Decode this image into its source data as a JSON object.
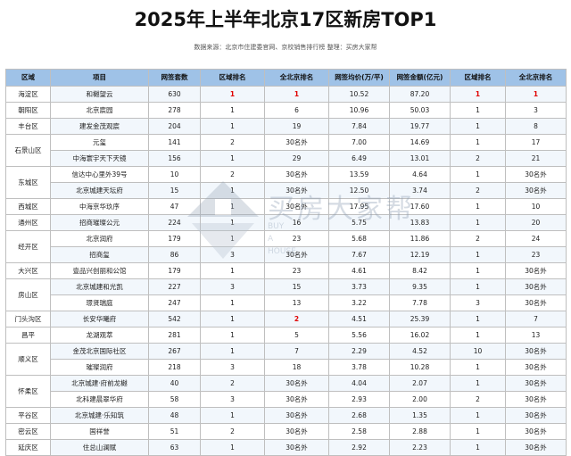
{
  "title": "2025年上半年北京17区新房TOP1",
  "source": "数据来源：北京市住建委官网、京校销售排行榜   整理：买房大家帮",
  "headers": [
    "区域",
    "项目",
    "网签套数",
    "区域排名",
    "全北京排名",
    "网签均价(万/平)",
    "网签金额(亿元)",
    "区域排名",
    "全北京排名"
  ],
  "rows": [
    {
      "district": "海淀区",
      "project": "和樾望云",
      "units": "630",
      "unit_rank": "1",
      "unit_bj": "1",
      "price": "10.52",
      "amount": "87.20",
      "amt_rank": "1",
      "amt_bj": "1"
    },
    {
      "district": "朝阳区",
      "project": "北京宸园",
      "units": "278",
      "unit_rank": "1",
      "unit_bj": "6",
      "price": "10.96",
      "amount": "50.03",
      "amt_rank": "1",
      "amt_bj": "3"
    },
    {
      "district": "丰台区",
      "project": "建发金茂观宸",
      "units": "204",
      "unit_rank": "1",
      "unit_bj": "19",
      "price": "7.84",
      "amount": "19.77",
      "amt_rank": "1",
      "amt_bj": "8"
    },
    {
      "district": "石景山区",
      "project": "元玺",
      "units": "141",
      "unit_rank": "2",
      "unit_bj": "30名外",
      "price": "7.00",
      "amount": "14.69",
      "amt_rank": "1",
      "amt_bj": "17"
    },
    {
      "district": "",
      "project": "中海寰宇天下天镜",
      "units": "156",
      "unit_rank": "1",
      "unit_bj": "29",
      "price": "6.49",
      "amount": "13.01",
      "amt_rank": "2",
      "amt_bj": "21"
    },
    {
      "district": "东城区",
      "project": "信达中心里外39号",
      "units": "10",
      "unit_rank": "2",
      "unit_bj": "30名外",
      "price": "13.59",
      "amount": "4.64",
      "amt_rank": "1",
      "amt_bj": "30名外"
    },
    {
      "district": "",
      "project": "北京城建天坛府",
      "units": "15",
      "unit_rank": "1",
      "unit_bj": "30名外",
      "price": "12.50",
      "amount": "3.74",
      "amt_rank": "2",
      "amt_bj": "30名外"
    },
    {
      "district": "西城区",
      "project": "中海京华玖序",
      "units": "47",
      "unit_rank": "1",
      "unit_bj": "30名外",
      "price": "17.95",
      "amount": "17.60",
      "amt_rank": "1",
      "amt_bj": "10"
    },
    {
      "district": "通州区",
      "project": "招商璀璨公元",
      "units": "224",
      "unit_rank": "1",
      "unit_bj": "16",
      "price": "5.75",
      "amount": "13.83",
      "amt_rank": "1",
      "amt_bj": "20"
    },
    {
      "district": "经开区",
      "project": "北京润府",
      "units": "179",
      "unit_rank": "1",
      "unit_bj": "23",
      "price": "5.68",
      "amount": "11.86",
      "amt_rank": "2",
      "amt_bj": "24"
    },
    {
      "district": "",
      "project": "招商玺",
      "units": "86",
      "unit_rank": "3",
      "unit_bj": "30名外",
      "price": "7.67",
      "amount": "12.19",
      "amt_rank": "1",
      "amt_bj": "23"
    },
    {
      "district": "大兴区",
      "project": "壹品兴创丽和公馆",
      "units": "179",
      "unit_rank": "1",
      "unit_bj": "23",
      "price": "4.61",
      "amount": "8.42",
      "amt_rank": "1",
      "amt_bj": "30名外"
    },
    {
      "district": "房山区",
      "project": "北京城建和光凯",
      "units": "227",
      "unit_rank": "3",
      "unit_bj": "15",
      "price": "3.73",
      "amount": "9.35",
      "amt_rank": "1",
      "amt_bj": "30名外"
    },
    {
      "district": "",
      "project": "璟贤瑞庭",
      "units": "247",
      "unit_rank": "1",
      "unit_bj": "13",
      "price": "3.22",
      "amount": "7.78",
      "amt_rank": "3",
      "amt_bj": "30名外"
    },
    {
      "district": "门头沟区",
      "project": "长安华曦府",
      "units": "542",
      "unit_rank": "1",
      "unit_bj": "2",
      "price": "4.51",
      "amount": "25.39",
      "amt_rank": "1",
      "amt_bj": "7"
    },
    {
      "district": "昌平",
      "project": "龙湖观萃",
      "units": "281",
      "unit_rank": "1",
      "unit_bj": "5",
      "price": "5.56",
      "amount": "16.02",
      "amt_rank": "1",
      "amt_bj": "13"
    },
    {
      "district": "顺义区",
      "project": "金茂北京国际社区",
      "units": "267",
      "unit_rank": "1",
      "unit_bj": "7",
      "price": "2.29",
      "amount": "4.52",
      "amt_rank": "10",
      "amt_bj": "30名外"
    },
    {
      "district": "",
      "project": "璀璨润府",
      "units": "218",
      "unit_rank": "3",
      "unit_bj": "18",
      "price": "3.78",
      "amount": "10.28",
      "amt_rank": "1",
      "amt_bj": "30名外"
    },
    {
      "district": "怀柔区",
      "project": "北京城建·府前龙樾",
      "units": "40",
      "unit_rank": "2",
      "unit_bj": "30名外",
      "price": "4.04",
      "amount": "2.07",
      "amt_rank": "1",
      "amt_bj": "30名外"
    },
    {
      "district": "",
      "project": "北科建晨翠华府",
      "units": "58",
      "unit_rank": "3",
      "unit_bj": "30名外",
      "price": "2.93",
      "amount": "2.00",
      "amt_rank": "2",
      "amt_bj": "30名外"
    },
    {
      "district": "平谷区",
      "project": "北京城建·乐知筑",
      "units": "48",
      "unit_rank": "1",
      "unit_bj": "30名外",
      "price": "2.68",
      "amount": "1.35",
      "amt_rank": "1",
      "amt_bj": "30名外"
    },
    {
      "district": "密云区",
      "project": "国祥誉",
      "units": "51",
      "unit_rank": "2",
      "unit_bj": "30名外",
      "price": "2.58",
      "amount": "2.88",
      "amt_rank": "1",
      "amt_bj": "30名外"
    },
    {
      "district": "延庆区",
      "project": "住总山澜赋",
      "units": "63",
      "unit_rank": "1",
      "unit_bj": "30名外",
      "price": "2.92",
      "amount": "2.23",
      "amt_rank": "1",
      "amt_bj": "30名外"
    }
  ],
  "watermark": {
    "text": "买房大家帮",
    "sub1": "BUY",
    "sub2": "A",
    "sub3": "HOUSE"
  },
  "colors": {
    "header_bg": "#9fc2e7",
    "highlight": "#e00000"
  }
}
